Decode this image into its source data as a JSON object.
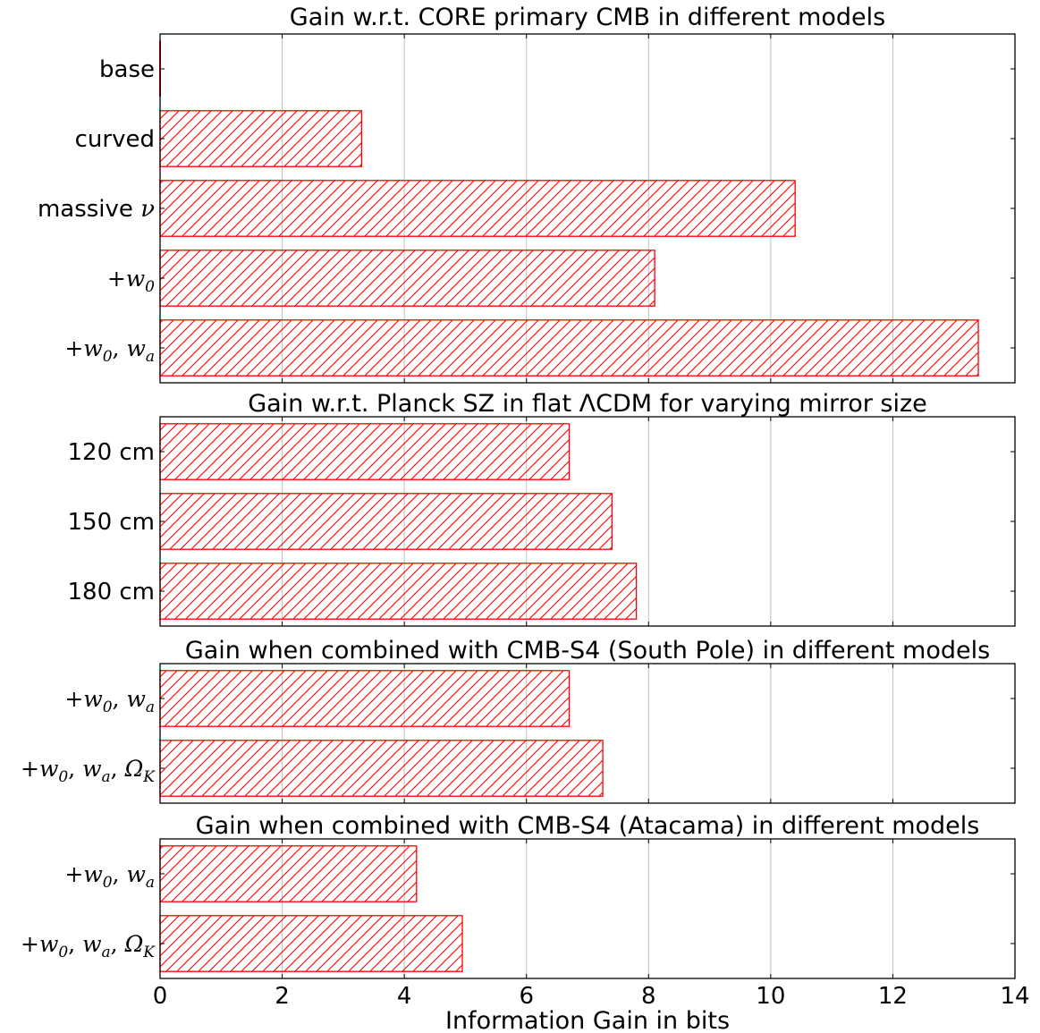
{
  "chart_data": [
    {
      "type": "bar",
      "orientation": "horizontal",
      "title": "Gain w.r.t. CORE primary CMB in different models",
      "categories": [
        "base",
        "curved",
        "massive ν",
        "+w0",
        "+w0, wa"
      ],
      "values": [
        0.0,
        3.3,
        10.4,
        8.1,
        13.4
      ],
      "xlim": [
        0,
        14
      ],
      "grid": "vertical",
      "color": "#ff0000",
      "hatch": "diagonal"
    },
    {
      "type": "bar",
      "orientation": "horizontal",
      "title": "Gain w.r.t. Planck SZ in flat ΛCDM for varying mirror size",
      "categories": [
        "120 cm",
        "150 cm",
        "180 cm"
      ],
      "values": [
        6.7,
        7.4,
        7.8
      ],
      "xlim": [
        0,
        14
      ],
      "grid": "vertical",
      "color": "#ff0000",
      "hatch": "diagonal"
    },
    {
      "type": "bar",
      "orientation": "horizontal",
      "title": "Gain when combined with CMB-S4 (South Pole) in different models",
      "categories": [
        "+w0, wa",
        "+w0, wa, ΩK"
      ],
      "values": [
        6.7,
        7.25
      ],
      "xlim": [
        0,
        14
      ],
      "grid": "vertical",
      "color": "#ff0000",
      "hatch": "diagonal"
    },
    {
      "type": "bar",
      "orientation": "horizontal",
      "title": "Gain when combined with CMB-S4 (Atacama) in different models",
      "categories": [
        "+w0, wa",
        "+w0, wa, ΩK"
      ],
      "values": [
        4.2,
        4.95
      ],
      "xlim": [
        0,
        14
      ],
      "grid": "vertical",
      "color": "#ff0000",
      "hatch": "diagonal"
    }
  ],
  "x_axis": {
    "label": "Information Gain in bits",
    "ticks": [
      0,
      2,
      4,
      6,
      8,
      10,
      12,
      14
    ]
  }
}
